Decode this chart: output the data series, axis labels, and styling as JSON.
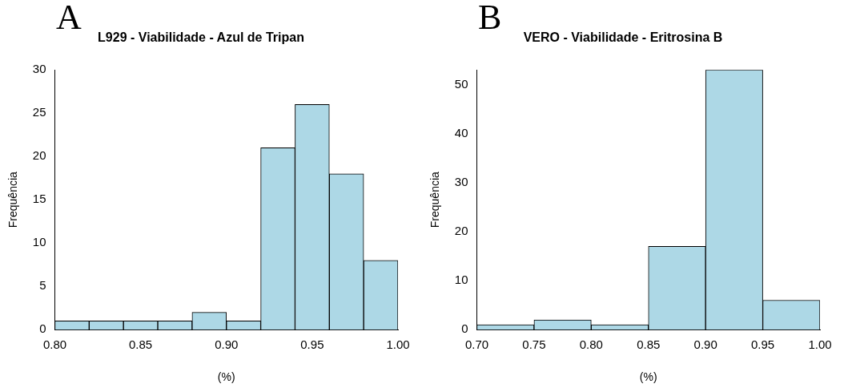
{
  "chart_data": [
    {
      "type": "histogram",
      "title": "L929 - Viabilidade - Azul de Tripan",
      "xlabel": "(%)",
      "ylabel": "Frequência",
      "annotations": [
        "A"
      ],
      "color": "#add8e6",
      "bins": [
        0.8,
        0.82,
        0.84,
        0.86,
        0.88,
        0.9,
        0.92,
        0.94,
        0.96,
        0.98,
        1.0
      ],
      "values": [
        1,
        1,
        1,
        1,
        2,
        1,
        21,
        26,
        18,
        8
      ],
      "xlim": [
        0.8,
        1.0
      ],
      "xticks": [
        {
          "value": 0.8,
          "label": "0.80"
        },
        {
          "value": 0.85,
          "label": "0.85"
        },
        {
          "value": 0.9,
          "label": "0.90"
        },
        {
          "value": 0.95,
          "label": "0.95"
        },
        {
          "value": 1,
          "label": "1.00"
        }
      ],
      "ylim": [
        0,
        30
      ],
      "yticks": [
        0,
        5,
        10,
        15,
        20,
        25,
        30
      ],
      "grid": false,
      "legend": false
    },
    {
      "type": "histogram",
      "title": "VERO - Viabilidade - Eritrosina B",
      "xlabel": "(%)",
      "ylabel": "Frequência",
      "annotations": [
        "B"
      ],
      "color": "#add8e6",
      "bins": [
        0.7,
        0.75,
        0.8,
        0.85,
        0.9,
        0.95,
        1.0
      ],
      "values": [
        1,
        2,
        1,
        17,
        53,
        6
      ],
      "xlim": [
        0.7,
        1.0
      ],
      "xticks": [
        {
          "value": 0.7,
          "label": "0.70"
        },
        {
          "value": 0.75,
          "label": "0.75"
        },
        {
          "value": 0.8,
          "label": "0.80"
        },
        {
          "value": 0.85,
          "label": "0.85"
        },
        {
          "value": 0.9,
          "label": "0.90"
        },
        {
          "value": 0.95,
          "label": "0.95"
        },
        {
          "value": 1,
          "label": "1.00"
        }
      ],
      "ylim": [
        0,
        53
      ],
      "yticks": [
        0,
        10,
        20,
        30,
        40,
        50
      ],
      "grid": false,
      "legend": false
    }
  ]
}
